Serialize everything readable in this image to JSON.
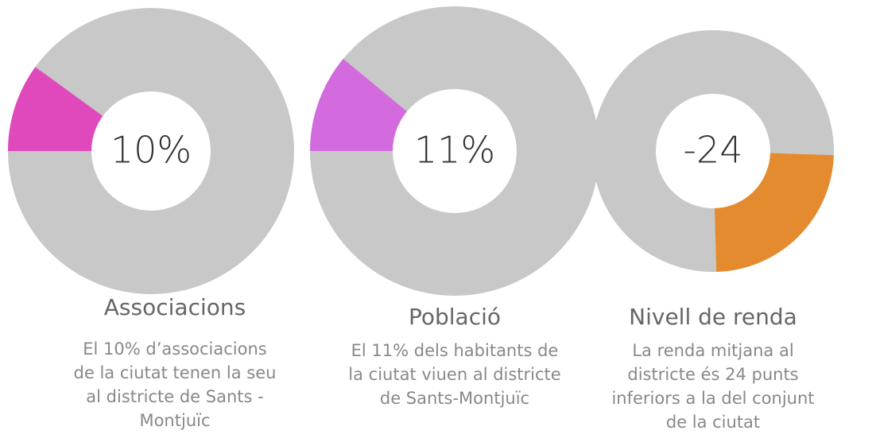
{
  "chart_data": [
    {
      "type": "donut",
      "title": "Associacions",
      "values": [
        10
      ],
      "value_labels": [
        "10%"
      ],
      "color": "#e049bb",
      "description": [
        "El 10% d’associacions",
        "de la ciutat tenen la seu",
        "al districte de Sants -",
        "Montjuïc"
      ]
    },
    {
      "type": "donut",
      "title": "Població",
      "values": [
        11
      ],
      "value_labels": [
        "11%"
      ],
      "color": "#d36ade",
      "description": [
        "El 11% dels habitants de",
        "la ciutat viuen al districte",
        "de Sants-Montjuïc"
      ]
    },
    {
      "type": "donut",
      "title": "Nivell de renda",
      "values": [
        -24
      ],
      "value_labels": [
        "-24"
      ],
      "color": "#e58b2f",
      "description": [
        "La renda mitjana al",
        "districte és 24 punts",
        "inferiors a la del conjunt",
        "de la ciutat"
      ]
    }
  ]
}
